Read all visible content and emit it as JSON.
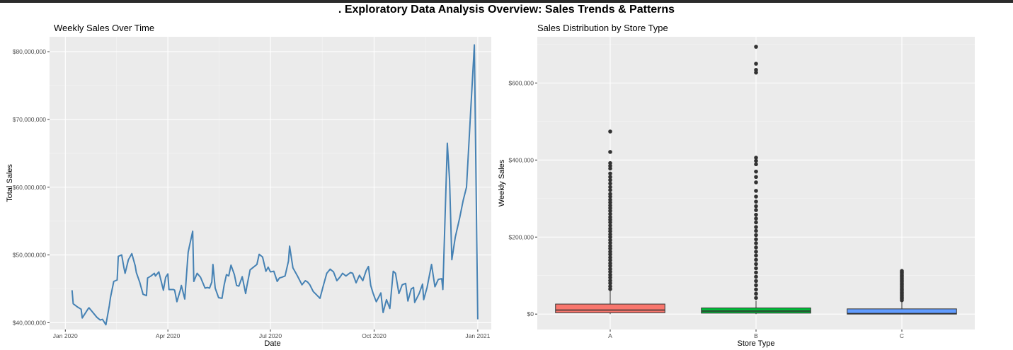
{
  "title": ". Exploratory Data Analysis Overview: Sales Trends & Patterns",
  "chart_data": [
    {
      "type": "line",
      "title": "Weekly Sales Over Time",
      "xlabel": "Date",
      "ylabel": "Total Sales",
      "x_tick_labels": [
        "Jan 2020",
        "Apr 2020",
        "Jul 2020",
        "Oct 2020",
        "Jan 2021"
      ],
      "x_tick_dates": [
        "2020-01-01",
        "2020-04-01",
        "2020-07-01",
        "2020-10-01",
        "2021-01-01"
      ],
      "y_tick_values": [
        40000000,
        50000000,
        60000000,
        70000000,
        80000000
      ],
      "y_tick_labels": [
        "$40,000,000",
        "$50,000,000",
        "$60,000,000",
        "$70,000,000",
        "$80,000,000"
      ],
      "xlim": [
        "2019-12-18",
        "2021-01-13"
      ],
      "ylim": [
        39000000,
        82200000
      ],
      "grid": true,
      "color": "#4682B4",
      "series": [
        {
          "x": [
            "2020-01-07",
            "2020-01-08",
            "2020-01-12",
            "2020-01-15",
            "2020-01-16",
            "2020-01-21",
            "2020-01-22",
            "2020-01-29",
            "2020-02-01",
            "2020-02-03",
            "2020-02-06",
            "2020-02-09",
            "2020-02-10",
            "2020-02-13",
            "2020-02-16",
            "2020-02-17",
            "2020-02-20",
            "2020-02-22",
            "2020-02-23",
            "2020-02-26",
            "2020-02-29",
            "2020-03-03",
            "2020-03-04",
            "2020-03-07",
            "2020-03-10",
            "2020-03-13",
            "2020-03-14",
            "2020-03-17",
            "2020-03-20",
            "2020-03-21",
            "2020-03-24",
            "2020-03-28",
            "2020-03-30",
            "2020-04-01",
            "2020-04-02",
            "2020-04-05",
            "2020-04-06",
            "2020-04-07",
            "2020-04-09",
            "2020-04-12",
            "2020-04-13",
            "2020-04-16",
            "2020-04-19",
            "2020-04-20",
            "2020-04-23",
            "2020-04-24",
            "2020-04-27",
            "2020-04-30",
            "2020-05-04",
            "2020-05-06",
            "2020-05-08",
            "2020-05-10",
            "2020-05-11",
            "2020-05-13",
            "2020-05-16",
            "2020-05-19",
            "2020-05-21",
            "2020-05-23",
            "2020-05-25",
            "2020-05-27",
            "2020-05-30",
            "2020-06-01",
            "2020-06-03",
            "2020-06-06",
            "2020-06-09",
            "2020-06-10",
            "2020-06-13",
            "2020-06-16",
            "2020-06-19",
            "2020-06-21",
            "2020-06-24",
            "2020-06-27",
            "2020-06-29",
            "2020-07-01",
            "2020-07-04",
            "2020-07-07",
            "2020-07-09",
            "2020-07-11",
            "2020-07-14",
            "2020-07-17",
            "2020-07-18",
            "2020-07-21",
            "2020-07-25",
            "2020-07-29",
            "2020-08-01",
            "2020-08-03",
            "2020-08-05",
            "2020-08-08",
            "2020-08-11",
            "2020-08-14",
            "2020-08-17",
            "2020-08-20",
            "2020-08-23",
            "2020-08-26",
            "2020-08-29",
            "2020-09-01",
            "2020-09-03",
            "2020-09-06",
            "2020-09-10",
            "2020-09-12",
            "2020-09-15",
            "2020-09-18",
            "2020-09-21",
            "2020-09-24",
            "2020-09-26",
            "2020-09-28",
            "2020-09-30",
            "2020-10-02",
            "2020-10-03",
            "2020-10-07",
            "2020-10-09",
            "2020-10-12",
            "2020-10-15",
            "2020-10-18",
            "2020-10-20",
            "2020-10-23",
            "2020-10-26",
            "2020-10-29",
            "2020-10-31",
            "2020-11-03",
            "2020-11-05",
            "2020-11-06",
            "2020-11-10",
            "2020-11-13",
            "2020-11-14",
            "2020-11-17",
            "2020-11-21",
            "2020-11-24",
            "2020-11-27",
            "2020-11-30",
            "2020-12-01",
            "2020-12-05",
            "2020-12-07",
            "2020-12-09",
            "2020-12-12",
            "2020-12-16",
            "2020-12-19",
            "2020-12-22",
            "2020-12-26",
            "2020-12-29",
            "2021-01-01"
          ],
          "y": [
            44800000,
            42800000,
            42300000,
            42000000,
            40700000,
            42000000,
            42200000,
            40800000,
            40400000,
            40500000,
            39700000,
            42500000,
            43700000,
            46100000,
            46300000,
            49800000,
            50000000,
            48100000,
            47300000,
            49300000,
            50200000,
            48400000,
            47400000,
            46000000,
            44200000,
            44000000,
            46600000,
            46900000,
            47300000,
            46900000,
            47500000,
            44800000,
            46700000,
            47200000,
            44900000,
            44900000,
            44900000,
            44800000,
            43100000,
            44800000,
            45500000,
            43500000,
            50400000,
            51200000,
            53500000,
            46100000,
            47300000,
            46700000,
            45100000,
            45200000,
            45100000,
            46000000,
            48600000,
            45100000,
            43700000,
            43600000,
            45600000,
            47100000,
            46900000,
            48500000,
            47100000,
            45500000,
            45400000,
            46800000,
            44300000,
            45300000,
            47800000,
            48200000,
            48600000,
            50100000,
            49700000,
            47600000,
            48200000,
            47500000,
            47600000,
            46100000,
            46600000,
            46700000,
            46900000,
            49100000,
            51300000,
            48100000,
            46900000,
            45600000,
            46200000,
            46000000,
            45600000,
            44600000,
            44100000,
            43600000,
            45500000,
            47300000,
            47900000,
            47500000,
            46200000,
            46800000,
            47300000,
            46900000,
            47400000,
            47300000,
            45900000,
            47000000,
            46200000,
            47700000,
            48300000,
            45500000,
            44400000,
            43500000,
            43100000,
            44400000,
            41500000,
            43400000,
            42100000,
            47600000,
            47300000,
            44300000,
            45600000,
            45800000,
            43200000,
            45000000,
            45200000,
            43000000,
            44300000,
            45700000,
            43400000,
            45200000,
            48600000,
            45300000,
            46400000,
            46500000,
            44900000,
            66500000,
            61000000,
            49300000,
            52600000,
            55500000,
            58000000,
            60000000,
            72000000,
            81000000,
            40500000
          ]
        }
      ]
    },
    {
      "type": "box",
      "title": "Sales Distribution by Store Type",
      "xlabel": "Store Type",
      "ylabel": "Weekly Sales",
      "categories": [
        "A",
        "B",
        "C"
      ],
      "y_tick_values": [
        0,
        200000,
        400000,
        600000
      ],
      "y_tick_labels": [
        "$0",
        "$200,000",
        "$400,000",
        "$600,000"
      ],
      "ylim": [
        -40000,
        720000
      ],
      "grid": true,
      "colors": [
        "#F8766D",
        "#00BA38",
        "#619CFF"
      ],
      "boxes": [
        {
          "category": "A",
          "q1": 3500,
          "median": 10500,
          "q3": 26000,
          "whisker_low": 0,
          "whisker_high": 60000,
          "outliers": [
            474000,
            421000,
            392000,
            385000,
            378000,
            365000,
            356000,
            348000,
            339000,
            330000,
            322000,
            312000,
            305000,
            297000,
            290000,
            282000,
            275000,
            268000,
            260000,
            252000,
            245000,
            238000,
            230000,
            222000,
            215000,
            207000,
            200000,
            192000,
            185000,
            177000,
            170000,
            162000,
            155000,
            147000,
            140000,
            132000,
            125000,
            117000,
            110000,
            102000,
            95000,
            87000,
            80000,
            72000,
            65000
          ]
        },
        {
          "category": "B",
          "q1": 2500,
          "median": 7800,
          "q3": 16000,
          "whisker_low": 0,
          "whisker_high": 35000,
          "outliers": [
            694000,
            650000,
            634000,
            627000,
            406000,
            398000,
            389000,
            370000,
            356000,
            342000,
            320000,
            305000,
            292000,
            280000,
            270000,
            258000,
            248000,
            238000,
            226000,
            216000,
            205000,
            194000,
            184000,
            173000,
            162000,
            152000,
            141000,
            130000,
            119000,
            108000,
            97000,
            86000,
            75000,
            64000,
            53000,
            42000
          ]
        },
        {
          "category": "C",
          "q1": 0,
          "median": 1500,
          "q3": 13500,
          "whisker_low": 0,
          "whisker_high": 32000,
          "outliers": [
            112000,
            108000,
            104000,
            100000,
            96000,
            92000,
            88000,
            84000,
            80000,
            76000,
            72000,
            68000,
            64000,
            60000,
            56000,
            52000,
            48000,
            44000,
            40000,
            36000
          ]
        }
      ]
    }
  ]
}
